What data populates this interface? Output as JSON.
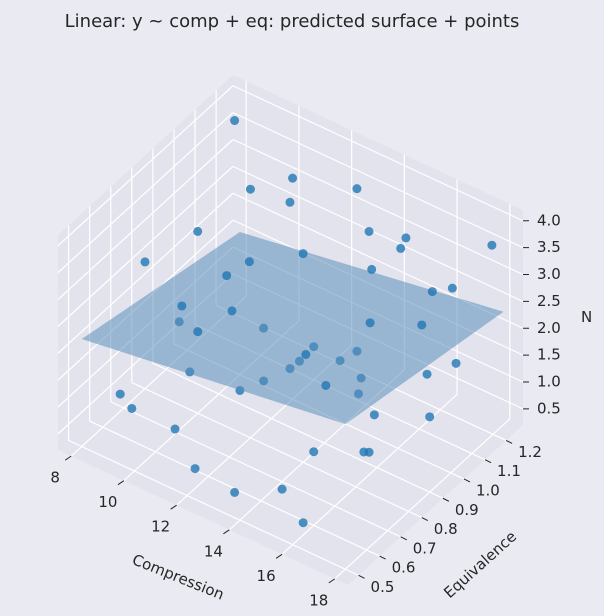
{
  "chart_data": {
    "type": "scatter3d",
    "title": "Linear: y ~ comp + eq: predicted surface + points",
    "xlabel": "Compression",
    "ylabel": "Equivalence",
    "zlabel": "N",
    "xlim": [
      7.5,
      18.5
    ],
    "ylim": [
      0.45,
      1.28
    ],
    "zlim": [
      0.2,
      4.2
    ],
    "xticks": [
      8,
      10,
      12,
      14,
      16,
      18
    ],
    "yticks": [
      0.5,
      0.6,
      0.7,
      0.8,
      0.9,
      {
        "value": 1,
        "label": "1.0"
      },
      1.1,
      1.2
    ],
    "zticks": [
      0.5,
      {
        "value": 1,
        "label": "1.0"
      },
      1.5,
      {
        "value": 2,
        "label": "2.0"
      },
      2.5,
      {
        "value": 3,
        "label": "3.0"
      },
      3.5,
      {
        "value": 4,
        "label": "4.0"
      }
    ],
    "grid": true,
    "series": [
      {
        "color": "#1f77b4",
        "x": [
          8.2,
          8.5,
          9.1,
          9.6,
          10.2,
          10.8,
          11.3,
          11.9,
          12.4,
          12.8,
          13.3,
          13.9,
          14.2,
          14.8,
          15.3,
          15.8,
          16.4,
          16.9,
          17.3,
          17.8,
          8.8,
          9.9,
          10.5,
          11.6,
          12.1,
          13.0,
          13.6,
          14.5,
          15.0,
          15.6,
          16.1,
          16.7,
          17.5,
          9.3,
          10.9,
          12.6,
          14.1,
          15.4,
          16.6,
          17.9,
          8.4,
          11.1,
          13.4,
          15.1,
          17.1,
          9.7,
          12.9,
          14.7,
          16.3,
          18.0
        ],
        "y": [
          1.2,
          0.9,
          0.6,
          1.1,
          0.7,
          1.15,
          0.8,
          0.55,
          1.0,
          0.65,
          1.2,
          0.75,
          0.95,
          0.6,
          1.1,
          0.85,
          0.5,
          1.0,
          0.7,
          1.22,
          0.7,
          0.95,
          1.05,
          0.6,
          0.85,
          1.18,
          0.9,
          0.75,
          1.0,
          0.65,
          1.15,
          0.8,
          0.95,
          0.52,
          0.58,
          0.72,
          1.05,
          0.88,
          1.2,
          0.6,
          1.0,
          1.1,
          0.55,
          0.98,
          1.12,
          0.8,
          0.92,
          1.2,
          0.62,
          0.9
        ],
        "z": [
          3.8,
          1.2,
          0.8,
          3.2,
          2.6,
          3.5,
          2.4,
          0.5,
          3.0,
          1.8,
          2.9,
          2.1,
          1.6,
          0.6,
          3.4,
          2.0,
          0.7,
          2.7,
          1.5,
          3.6,
          3.1,
          2.2,
          1.0,
          2.8,
          1.1,
          3.7,
          1.9,
          2.5,
          3.3,
          1.3,
          2.6,
          1.7,
          2.1,
          1.4,
          0.9,
          3.9,
          0.6,
          2.3,
          1.2,
          2.0,
          2.5,
          3.3,
          0.4,
          2.4,
          3.0,
          0.9,
          1.4,
          3.1,
          2.8,
          1.6
        ]
      }
    ],
    "surface": {
      "color": "#5b8fb9",
      "x": [
        8,
        18
      ],
      "y": [
        0.5,
        1.25
      ],
      "z": [
        [
          2.2,
          1.5
        ],
        [
          2.9,
          2.3
        ]
      ]
    }
  }
}
